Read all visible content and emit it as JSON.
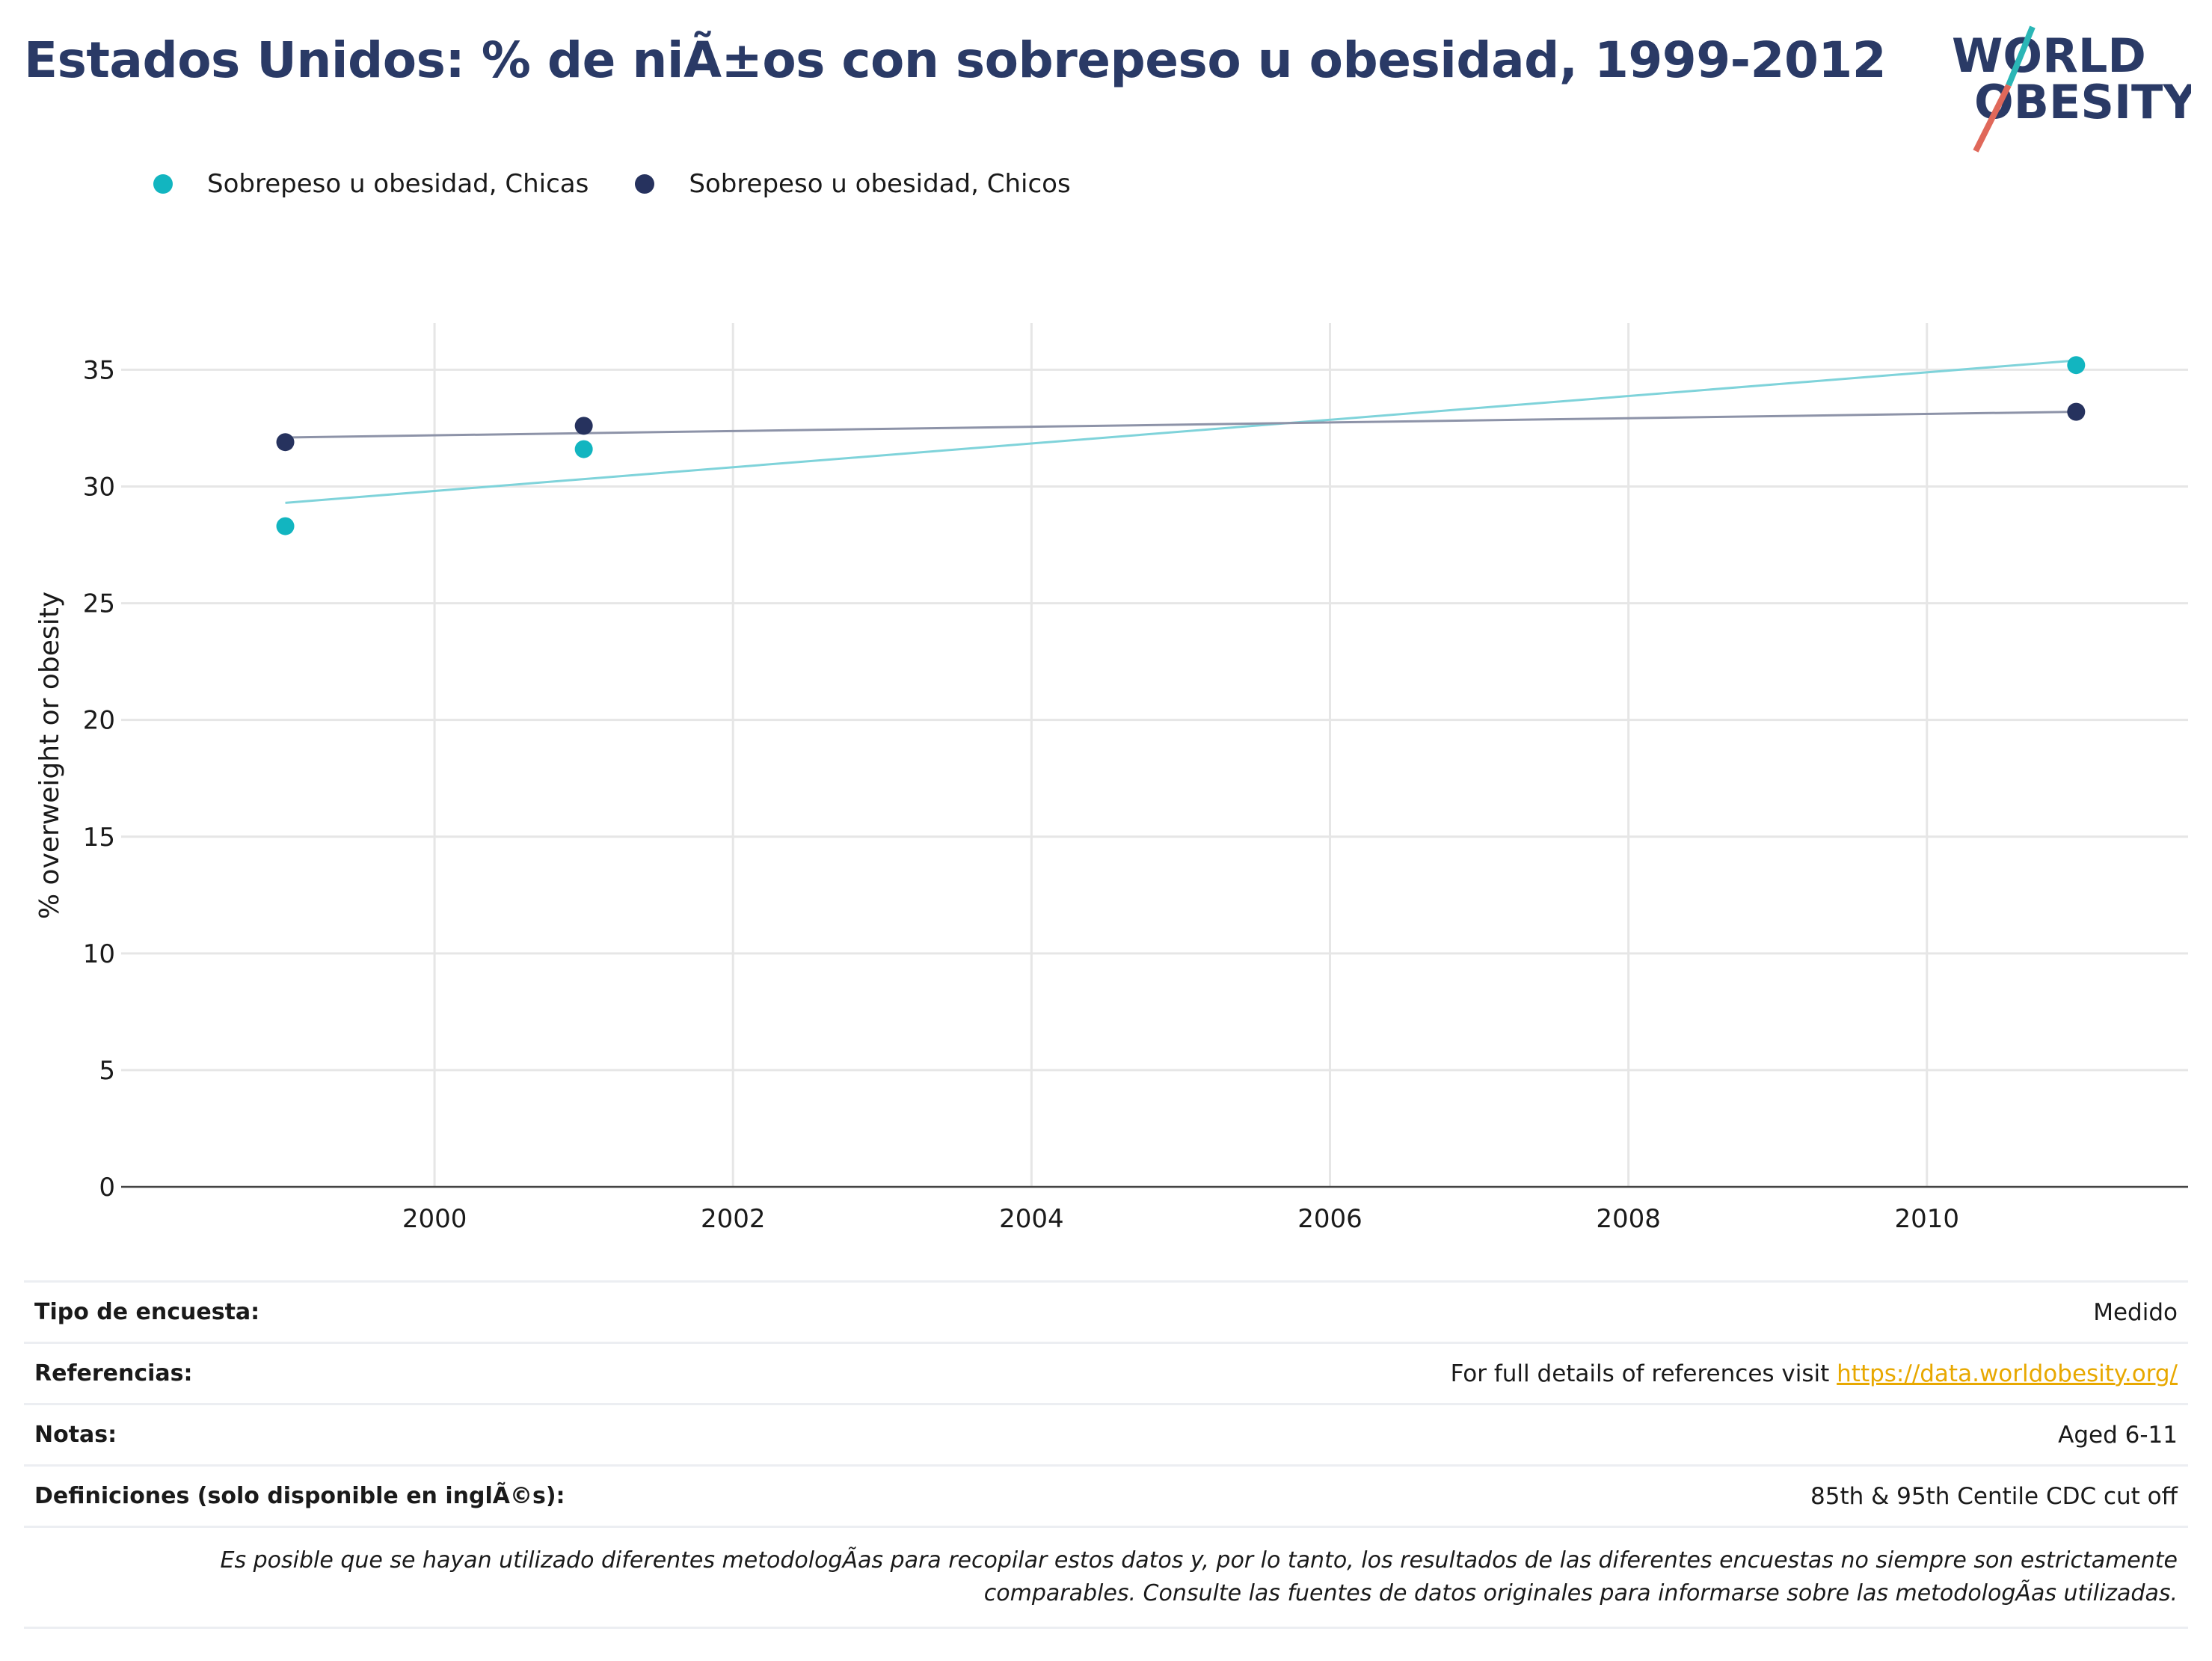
{
  "header": {
    "title": "Estados Unidos: % de niÃ±os con sobrepeso u obesidad, 1999-2012",
    "logo_text": "WORLD OBESITY"
  },
  "legend": [
    {
      "label": "Sobrepeso u obesidad, Chicas",
      "color": "#12b5c0"
    },
    {
      "label": "Sobrepeso u obesidad, Chicos",
      "color": "#26325e"
    }
  ],
  "chart_data": {
    "type": "scatter",
    "xlabel": "",
    "ylabel": "% overweight or obesity",
    "xlim": [
      1997.9,
      2011.75
    ],
    "ylim": [
      0,
      37
    ],
    "x_ticks": [
      2000,
      2002,
      2004,
      2006,
      2008,
      2010
    ],
    "y_ticks": [
      0,
      5,
      10,
      15,
      20,
      25,
      30,
      35
    ],
    "grid": true,
    "legend_position": "top-left",
    "series": [
      {
        "name": "Sobrepeso u obesidad, Chicas",
        "color": "#12b5c0",
        "trend_color": "#7fd3da",
        "x": [
          1999,
          2001,
          2011
        ],
        "y": [
          28.3,
          31.6,
          35.2
        ],
        "trend": [
          [
            1999,
            29.3
          ],
          [
            2011,
            35.4
          ]
        ]
      },
      {
        "name": "Sobrepeso u obesidad, Chicos",
        "color": "#26325e",
        "trend_color": "#8d93a8",
        "x": [
          1999,
          2001,
          2011
        ],
        "y": [
          31.9,
          32.6,
          33.2
        ],
        "trend": [
          [
            1999,
            32.1
          ],
          [
            2011,
            33.2
          ]
        ]
      }
    ]
  },
  "info": {
    "rows": [
      {
        "key": "Tipo de encuesta:",
        "value": "Medido"
      },
      {
        "key": "Referencias:",
        "value_prefix": "For full details of references visit ",
        "link": "https://data.worldobesity.org/"
      },
      {
        "key": "Notas:",
        "value": "Aged 6-11"
      },
      {
        "key": "Definiciones (solo disponible en inglÃ©s):",
        "value": "85th & 95th Centile CDC cut off"
      }
    ],
    "disclaimer_line1": "Es posible que se hayan utilizado diferentes metodologÃas para recopilar estos datos y, por lo tanto, los resultados de las diferentes encuestas no siempre son estrictamente",
    "disclaimer_line2": "comparables. Consulte las fuentes de datos originales para informarse sobre las metodologÃas utilizadas."
  }
}
